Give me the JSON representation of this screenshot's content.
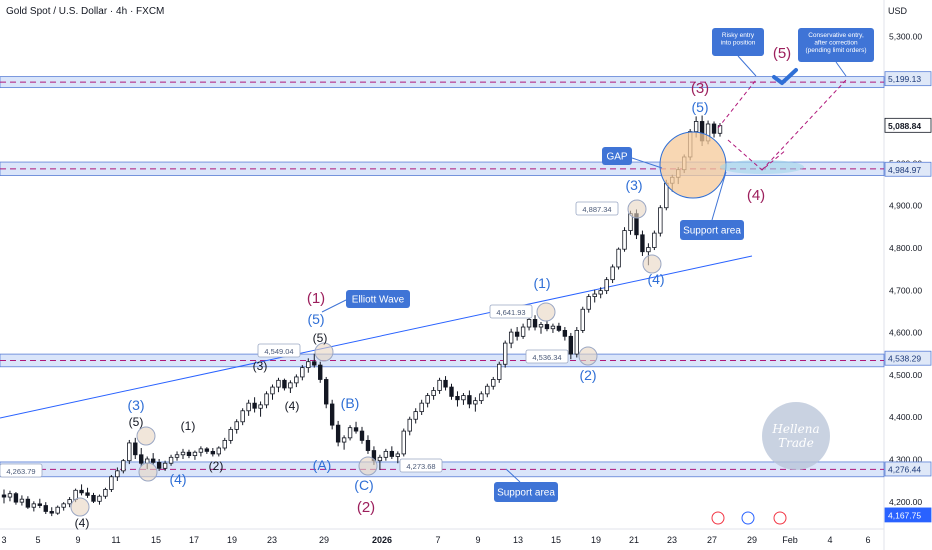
{
  "header": {
    "title": "Gold Spot / U.S. Dollar · 4h · FXCM",
    "currency": "USD"
  },
  "watermark": {
    "line1": "Hellena",
    "line2": "Trade"
  },
  "colors": {
    "up": "#089981",
    "down": "#f23645",
    "candle": "#131722",
    "trendline": "#2962ff",
    "zone_fill": "#bbd0f5",
    "zone_border": "#5b7fd6",
    "purple_label": "#9c1f5c",
    "blue_label": "#2f6fd6",
    "annotation_box": "#3f74d6",
    "gap_fill": "#f6c99a",
    "dashed_purple": "#b0177a",
    "marker_circle": "#9aa7c4"
  },
  "chart_data": {
    "type": "candlestick",
    "title": "Gold Spot / U.S. Dollar · 4h · FXCM",
    "y_axis": {
      "unit": "USD",
      "range": [
        4150,
        5360
      ],
      "ticks": [
        "5,300.00",
        "5,000.00",
        "4,900.00",
        "4,800.00",
        "4,700.00",
        "4,600.00",
        "4,500.00",
        "4,400.00",
        "4,300.00",
        "4,200.00"
      ],
      "tick_values": [
        5300,
        5000,
        4900,
        4800,
        4700,
        4600,
        4500,
        4400,
        4300,
        4200
      ]
    },
    "x_axis": {
      "ticks": [
        "3",
        "5",
        "9",
        "11",
        "15",
        "17",
        "19",
        "23",
        "29",
        "2026",
        "7",
        "9",
        "13",
        "15",
        "19",
        "21",
        "23",
        "27",
        "29",
        "Feb",
        "4",
        "6"
      ]
    },
    "price_labels": [
      {
        "text": "5,199.13",
        "value": 5199.13,
        "style": "zone"
      },
      {
        "text": "5,088.84",
        "value": 5088.84,
        "style": "last"
      },
      {
        "text": "4,984.97",
        "value": 4984.97,
        "style": "zone"
      },
      {
        "text": "4,538.29",
        "value": 4538.29,
        "style": "zone"
      },
      {
        "text": "4,276.44",
        "value": 4276.44,
        "style": "zone"
      },
      {
        "text": "4,167.75",
        "value": 4167.75,
        "style": "blue"
      }
    ],
    "zones": [
      {
        "name": "resistance-zone-5199",
        "top": 5204,
        "bottom": 5178
      },
      {
        "name": "support-zone-4985",
        "top": 5002,
        "bottom": 4970
      },
      {
        "name": "support-zone-4538",
        "top": 4548,
        "bottom": 4518
      },
      {
        "name": "support-zone-4276",
        "top": 4293,
        "bottom": 4258
      }
    ],
    "key_levels": [
      {
        "text": "4,263.79",
        "value": 4263.79
      },
      {
        "text": "4,549.04",
        "value": 4549.04
      },
      {
        "text": "4,273.68",
        "value": 4273.68
      },
      {
        "text": "4,641.93",
        "value": 4641.93
      },
      {
        "text": "4,536.34",
        "value": 4536.34
      },
      {
        "text": "4,887.34",
        "value": 4887.34
      }
    ],
    "wave_labels": [
      {
        "text": "(4)",
        "color": "dark"
      },
      {
        "text": "(3)",
        "color": "blue"
      },
      {
        "text": "(5)",
        "color": "dark"
      },
      {
        "text": "(4)",
        "color": "blue"
      },
      {
        "text": "(1)",
        "color": "dark"
      },
      {
        "text": "(2)",
        "color": "dark"
      },
      {
        "text": "(3)",
        "color": "dark"
      },
      {
        "text": "(4)",
        "color": "dark"
      },
      {
        "text": "(5)",
        "color": "dark"
      },
      {
        "text": "(5)",
        "color": "blue"
      },
      {
        "text": "(1)",
        "color": "purple"
      },
      {
        "text": "(A)",
        "color": "blue"
      },
      {
        "text": "(B)",
        "color": "blue"
      },
      {
        "text": "(C)",
        "color": "blue"
      },
      {
        "text": "(2)",
        "color": "purple"
      },
      {
        "text": "(1)",
        "color": "blue"
      },
      {
        "text": "(2)",
        "color": "blue"
      },
      {
        "text": "(3)",
        "color": "blue"
      },
      {
        "text": "(4)",
        "color": "blue"
      },
      {
        "text": "(5)",
        "color": "blue"
      },
      {
        "text": "(3)",
        "color": "purple"
      },
      {
        "text": "(4)",
        "color": "purple"
      },
      {
        "text": "(5)",
        "color": "purple"
      }
    ],
    "annotations": [
      {
        "text": "Elliott Wave"
      },
      {
        "text": "GAP"
      },
      {
        "text": "Support area"
      },
      {
        "text": "Support area"
      },
      {
        "text": "Risky entry into position"
      },
      {
        "text": "Conservative entry, after correction (pending limit orders)"
      }
    ],
    "candles": [
      [
        4215,
        4228,
        4195,
        4210
      ],
      [
        4210,
        4225,
        4200,
        4218
      ],
      [
        4218,
        4222,
        4192,
        4198
      ],
      [
        4198,
        4214,
        4190,
        4205
      ],
      [
        4205,
        4212,
        4182,
        4186
      ],
      [
        4186,
        4200,
        4176,
        4194
      ],
      [
        4194,
        4206,
        4184,
        4190
      ],
      [
        4190,
        4198,
        4170,
        4176
      ],
      [
        4176,
        4186,
        4165,
        4172
      ],
      [
        4172,
        4190,
        4168,
        4186
      ],
      [
        4186,
        4198,
        4178,
        4194
      ],
      [
        4194,
        4210,
        4186,
        4204
      ],
      [
        4204,
        4230,
        4198,
        4226
      ],
      [
        4226,
        4240,
        4214,
        4220
      ],
      [
        4220,
        4232,
        4208,
        4214
      ],
      [
        4214,
        4220,
        4196,
        4200
      ],
      [
        4200,
        4216,
        4192,
        4212
      ],
      [
        4212,
        4232,
        4206,
        4228
      ],
      [
        4228,
        4262,
        4222,
        4258
      ],
      [
        4258,
        4280,
        4248,
        4272
      ],
      [
        4272,
        4300,
        4266,
        4296
      ],
      [
        4296,
        4345,
        4288,
        4338
      ],
      [
        4338,
        4350,
        4300,
        4310
      ],
      [
        4310,
        4326,
        4282,
        4290
      ],
      [
        4290,
        4306,
        4276,
        4300
      ],
      [
        4300,
        4314,
        4286,
        4292
      ],
      [
        4292,
        4300,
        4272,
        4278
      ],
      [
        4278,
        4296,
        4272,
        4290
      ],
      [
        4290,
        4310,
        4284,
        4304
      ],
      [
        4304,
        4318,
        4296,
        4310
      ],
      [
        4310,
        4324,
        4300,
        4316
      ],
      [
        4316,
        4322,
        4302,
        4308
      ],
      [
        4308,
        4320,
        4298,
        4316
      ],
      [
        4316,
        4330,
        4306,
        4324
      ],
      [
        4324,
        4328,
        4312,
        4318
      ],
      [
        4318,
        4326,
        4306,
        4312
      ],
      [
        4312,
        4330,
        4306,
        4326
      ],
      [
        4326,
        4350,
        4320,
        4344
      ],
      [
        4344,
        4376,
        4336,
        4370
      ],
      [
        4370,
        4394,
        4360,
        4388
      ],
      [
        4388,
        4420,
        4380,
        4414
      ],
      [
        4414,
        4440,
        4402,
        4432
      ],
      [
        4432,
        4446,
        4410,
        4420
      ],
      [
        4420,
        4436,
        4400,
        4428
      ],
      [
        4428,
        4460,
        4420,
        4454
      ],
      [
        4454,
        4476,
        4440,
        4470
      ],
      [
        4470,
        4492,
        4458,
        4486
      ],
      [
        4486,
        4490,
        4462,
        4468
      ],
      [
        4468,
        4486,
        4456,
        4480
      ],
      [
        4480,
        4500,
        4470,
        4494
      ],
      [
        4494,
        4522,
        4486,
        4516
      ],
      [
        4516,
        4538,
        4504,
        4530
      ],
      [
        4530,
        4549,
        4516,
        4522
      ],
      [
        4522,
        4530,
        4480,
        4488
      ],
      [
        4488,
        4494,
        4420,
        4430
      ],
      [
        4430,
        4440,
        4370,
        4380
      ],
      [
        4380,
        4390,
        4330,
        4340
      ],
      [
        4340,
        4356,
        4322,
        4350
      ],
      [
        4350,
        4380,
        4344,
        4374
      ],
      [
        4374,
        4388,
        4360,
        4366
      ],
      [
        4366,
        4376,
        4336,
        4344
      ],
      [
        4344,
        4356,
        4312,
        4320
      ],
      [
        4320,
        4330,
        4286,
        4296
      ],
      [
        4296,
        4310,
        4274,
        4304
      ],
      [
        4304,
        4324,
        4296,
        4318
      ],
      [
        4318,
        4330,
        4300,
        4306
      ],
      [
        4306,
        4318,
        4290,
        4312
      ],
      [
        4312,
        4372,
        4306,
        4366
      ],
      [
        4366,
        4400,
        4356,
        4394
      ],
      [
        4394,
        4420,
        4384,
        4412
      ],
      [
        4412,
        4440,
        4404,
        4432
      ],
      [
        4432,
        4456,
        4422,
        4450
      ],
      [
        4450,
        4470,
        4440,
        4462
      ],
      [
        4462,
        4492,
        4454,
        4486
      ],
      [
        4486,
        4496,
        4462,
        4470
      ],
      [
        4470,
        4478,
        4440,
        4448
      ],
      [
        4448,
        4460,
        4424,
        4440
      ],
      [
        4440,
        4456,
        4428,
        4450
      ],
      [
        4450,
        4462,
        4420,
        4430
      ],
      [
        4430,
        4446,
        4412,
        4438
      ],
      [
        4438,
        4460,
        4430,
        4454
      ],
      [
        4454,
        4478,
        4446,
        4472
      ],
      [
        4472,
        4494,
        4464,
        4488
      ],
      [
        4488,
        4530,
        4480,
        4524
      ],
      [
        4524,
        4580,
        4516,
        4574
      ],
      [
        4574,
        4608,
        4562,
        4600
      ],
      [
        4600,
        4612,
        4580,
        4590
      ],
      [
        4590,
        4620,
        4584,
        4612
      ],
      [
        4612,
        4642,
        4604,
        4630
      ],
      [
        4630,
        4640,
        4604,
        4612
      ],
      [
        4612,
        4624,
        4596,
        4618
      ],
      [
        4618,
        4628,
        4602,
        4608
      ],
      [
        4608,
        4620,
        4598,
        4614
      ],
      [
        4614,
        4622,
        4600,
        4604
      ],
      [
        4604,
        4612,
        4580,
        4590
      ],
      [
        4590,
        4598,
        4536,
        4548
      ],
      [
        4548,
        4612,
        4540,
        4604
      ],
      [
        4604,
        4660,
        4598,
        4654
      ],
      [
        4654,
        4690,
        4646,
        4684
      ],
      [
        4684,
        4700,
        4670,
        4690
      ],
      [
        4690,
        4706,
        4680,
        4698
      ],
      [
        4698,
        4730,
        4690,
        4724
      ],
      [
        4724,
        4760,
        4716,
        4754
      ],
      [
        4754,
        4800,
        4748,
        4796
      ],
      [
        4796,
        4848,
        4790,
        4840
      ],
      [
        4840,
        4887,
        4830,
        4880
      ],
      [
        4880,
        4890,
        4820,
        4830
      ],
      [
        4830,
        4840,
        4780,
        4790
      ],
      [
        4790,
        4810,
        4758,
        4800
      ],
      [
        4800,
        4840,
        4794,
        4834
      ],
      [
        4834,
        4900,
        4826,
        4894
      ],
      [
        4894,
        4960,
        4888,
        4952
      ],
      [
        4952,
        4972,
        4932,
        4966
      ],
      [
        4966,
        4990,
        4950,
        4984
      ],
      [
        4984,
        5020,
        4976,
        5014
      ],
      [
        5014,
        5080,
        5006,
        5074
      ],
      [
        5074,
        5110,
        5060,
        5098
      ],
      [
        5098,
        5112,
        5040,
        5052
      ],
      [
        5052,
        5100,
        5044,
        5092
      ],
      [
        5092,
        5098,
        5060,
        5070
      ],
      [
        5070,
        5094,
        5062,
        5088
      ]
    ]
  }
}
